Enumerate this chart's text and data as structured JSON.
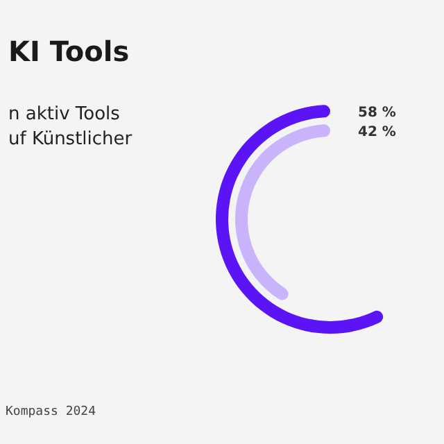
{
  "chart_data": {
    "type": "other",
    "title": "KI Tools",
    "subtitle": "n aktiv Tools uf Künstlicher",
    "categories": [
      null,
      null
    ],
    "values": [
      58,
      42
    ],
    "colors": [
      "#5a14f5",
      "#c9b3fa"
    ],
    "value_labels": [
      "58 %",
      "42 %"
    ],
    "annotations": [
      "Kompass 2024"
    ]
  }
}
